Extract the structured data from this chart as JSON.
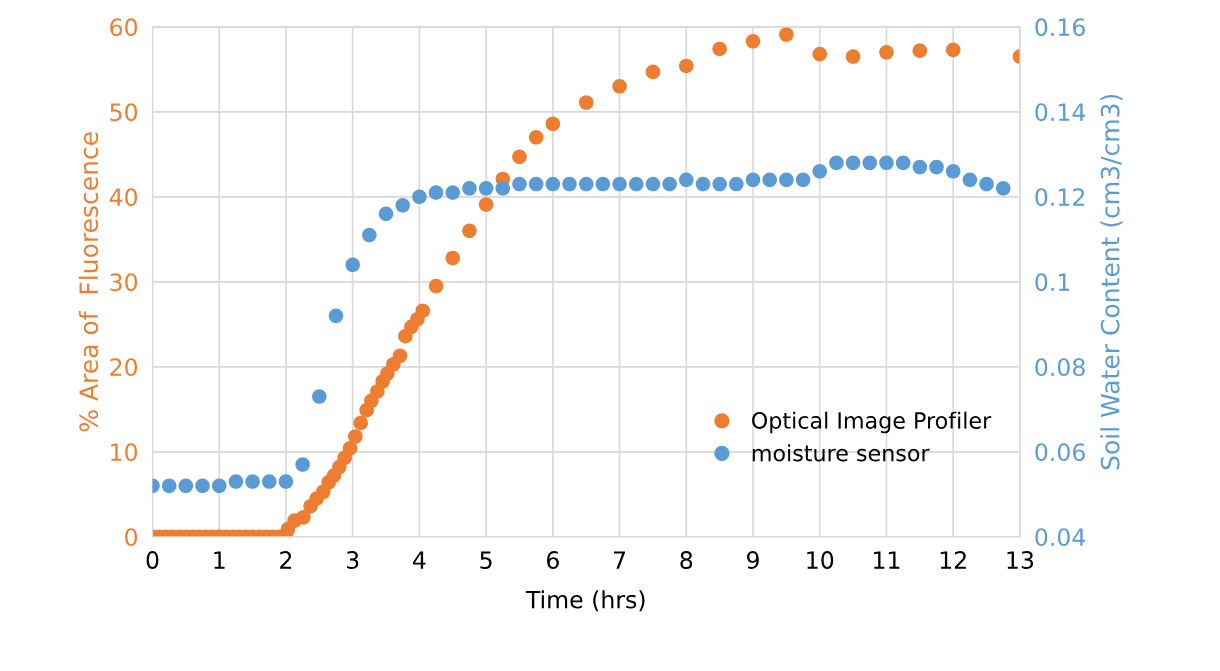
{
  "chart_data": {
    "type": "scatter",
    "xlabel": "Time (hrs)",
    "ylabel": "% Area of  Fluorescence",
    "y2label": "Soil Water Content (cm3/cm3)",
    "xlim": [
      0,
      13
    ],
    "xticks": [
      0,
      1,
      2,
      3,
      4,
      5,
      6,
      7,
      8,
      9,
      10,
      11,
      12,
      13
    ],
    "ylim": [
      0,
      60
    ],
    "yticks": [
      0,
      10,
      20,
      30,
      40,
      50,
      60
    ],
    "y2lim": [
      0.04,
      0.16
    ],
    "y2ticks": [
      0.04,
      0.06,
      0.08,
      0.1,
      0.12,
      0.14,
      0.16
    ],
    "grid": true,
    "legend": "bottom right",
    "marker": "circle",
    "series": [
      {
        "name": "Optical Image Profiler",
        "color": "#ed7d31",
        "x": [
          0,
          0.1,
          0.2,
          0.3,
          0.4,
          0.5,
          0.6,
          0.7,
          0.8,
          0.9,
          1.0,
          1.1,
          1.2,
          1.3,
          1.4,
          1.5,
          1.6,
          1.7,
          1.8,
          1.9,
          2.0,
          2.03,
          2.13,
          2.26,
          2.37,
          2.46,
          2.56,
          2.64,
          2.72,
          2.8,
          2.88,
          2.96,
          3.04,
          3.12,
          3.21,
          3.28,
          3.37,
          3.45,
          3.52,
          3.61,
          3.71,
          3.79,
          3.88,
          3.97,
          4.05,
          4.25,
          4.5,
          4.75,
          5.0,
          5.25,
          5.5,
          5.75,
          6.0,
          6.5,
          7.0,
          7.5,
          8.0,
          8.5,
          9.0,
          9.5,
          10.0,
          10.5,
          11.0,
          11.5,
          12.0,
          13.0
        ],
        "values": [
          0,
          0,
          0,
          0,
          0,
          0,
          0,
          0,
          0,
          0,
          0,
          0,
          0,
          0,
          0,
          0,
          0,
          0,
          0,
          0,
          0,
          0.9,
          1.9,
          2.3,
          3.6,
          4.5,
          5.3,
          6.4,
          7.2,
          8.2,
          9.3,
          10.4,
          11.8,
          13.4,
          14.9,
          16.0,
          17.1,
          18.3,
          19.2,
          20.3,
          21.3,
          23.6,
          24.7,
          25.6,
          26.6,
          29.5,
          32.8,
          36.0,
          39.1,
          42.1,
          44.7,
          47.0,
          48.6,
          51.1,
          53.0,
          54.7,
          55.4,
          57.4,
          58.3,
          59.1,
          56.8,
          56.5,
          57.0,
          57.2,
          57.3,
          56.5
        ]
      },
      {
        "name": "moisture sensor",
        "color": "#5b9bd5",
        "axis": "y2",
        "x": [
          0,
          0.25,
          0.5,
          0.75,
          1.0,
          1.25,
          1.5,
          1.75,
          2.0,
          2.25,
          2.5,
          2.75,
          3.0,
          3.25,
          3.5,
          3.75,
          4.0,
          4.25,
          4.5,
          4.75,
          5.0,
          5.25,
          5.5,
          5.75,
          6.0,
          6.25,
          6.5,
          6.75,
          7.0,
          7.25,
          7.5,
          7.75,
          8.0,
          8.25,
          8.5,
          8.75,
          9.0,
          9.25,
          9.5,
          9.75,
          10.0,
          10.25,
          10.5,
          10.75,
          11.0,
          11.25,
          11.5,
          11.75,
          12.0,
          12.25,
          12.5,
          12.75
        ],
        "values": [
          0.052,
          0.052,
          0.052,
          0.052,
          0.052,
          0.053,
          0.053,
          0.053,
          0.053,
          0.057,
          0.073,
          0.092,
          0.104,
          0.111,
          0.116,
          0.118,
          0.12,
          0.121,
          0.121,
          0.122,
          0.122,
          0.122,
          0.123,
          0.123,
          0.123,
          0.123,
          0.123,
          0.123,
          0.123,
          0.123,
          0.123,
          0.123,
          0.124,
          0.123,
          0.123,
          0.123,
          0.124,
          0.124,
          0.124,
          0.124,
          0.126,
          0.128,
          0.128,
          0.128,
          0.128,
          0.128,
          0.127,
          0.127,
          0.126,
          0.124,
          0.123,
          0.122
        ]
      }
    ]
  }
}
